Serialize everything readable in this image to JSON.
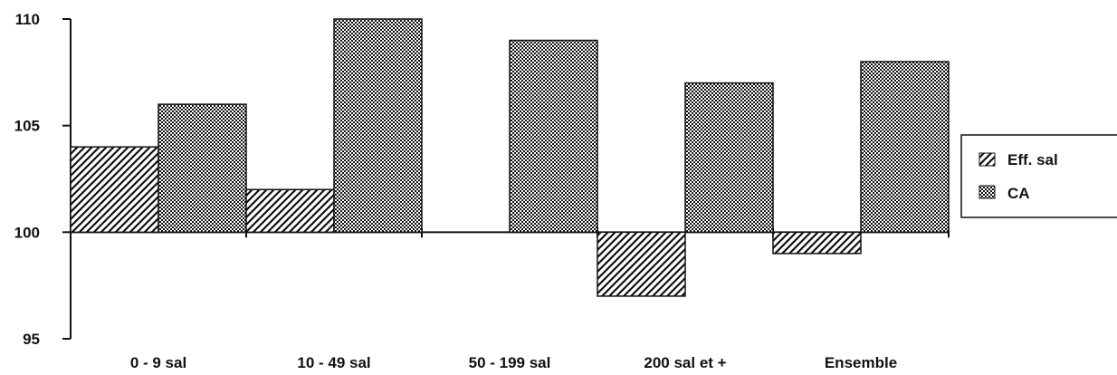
{
  "chart_data": {
    "type": "bar",
    "categories": [
      "0 - 9 sal",
      "10 - 49 sal",
      "50 - 199 sal",
      "200 sal et +",
      "Ensemble"
    ],
    "series": [
      {
        "name": "Eff. sal",
        "values": [
          104,
          102,
          100,
          97,
          99
        ],
        "pattern": "diagonal-hatch"
      },
      {
        "name": "CA",
        "values": [
          106,
          110,
          109,
          107,
          108
        ],
        "pattern": "dotted"
      }
    ],
    "baseline": 100,
    "ylim": [
      95,
      110
    ],
    "yticks": [
      95,
      100,
      105,
      110
    ],
    "title": "",
    "xlabel": "",
    "ylabel": "",
    "grid": false,
    "legend_position": "right"
  }
}
